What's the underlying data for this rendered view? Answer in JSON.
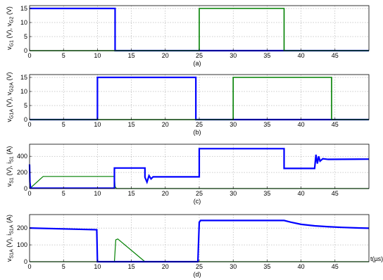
{
  "chart_data": [
    {
      "type": "line",
      "panel_label": "(a)",
      "ylabel": "v_G1 (V), v_G2 (V)",
      "ylabel_parts": [
        "v",
        "G1",
        " (V), v",
        "G2",
        " (V)"
      ],
      "xlim": [
        0,
        50
      ],
      "ylim": [
        0,
        16
      ],
      "xticks": [
        0,
        5,
        10,
        15,
        20,
        25,
        30,
        35,
        40,
        45
      ],
      "yticks": [
        0,
        5,
        10,
        15
      ],
      "grid": true,
      "series": [
        {
          "color": "#0000ff",
          "width": 2.2,
          "x": [
            0,
            12.6,
            12.6,
            50
          ],
          "y": [
            15,
            15,
            0,
            0
          ]
        },
        {
          "color": "#008000",
          "width": 1.6,
          "x": [
            0,
            25,
            25,
            37.5,
            37.5,
            50
          ],
          "y": [
            0,
            0,
            15,
            15,
            0,
            0
          ]
        }
      ]
    },
    {
      "type": "line",
      "panel_label": "(b)",
      "ylabel": "v_G1A (V), v_G2A (V)",
      "ylabel_parts": [
        "v",
        "G1A",
        " (V), v",
        "G2A",
        " (V)"
      ],
      "xlim": [
        0,
        50
      ],
      "ylim": [
        0,
        16
      ],
      "xticks": [
        0,
        5,
        10,
        15,
        20,
        25,
        30,
        35,
        40,
        45
      ],
      "yticks": [
        0,
        5,
        10,
        15
      ],
      "grid": true,
      "series": [
        {
          "color": "#0000ff",
          "width": 2.2,
          "x": [
            0,
            10,
            10,
            24.5,
            24.5,
            50
          ],
          "y": [
            0,
            0,
            15,
            15,
            0,
            0
          ]
        },
        {
          "color": "#008000",
          "width": 1.6,
          "x": [
            0,
            30,
            30,
            44.5,
            44.5,
            50
          ],
          "y": [
            0,
            0,
            15,
            15,
            0,
            0
          ]
        }
      ]
    },
    {
      "type": "line",
      "panel_label": "(c)",
      "ylabel": "v_S1 (V), i_S1 (A)",
      "ylabel_parts": [
        "v",
        "S1",
        " (V), i",
        "S1",
        " (A)"
      ],
      "xlim": [
        0,
        50
      ],
      "ylim": [
        0,
        550
      ],
      "xticks": [
        0,
        5,
        10,
        15,
        20,
        25,
        30,
        35,
        40,
        45
      ],
      "yticks": [
        0,
        200,
        400
      ],
      "grid": true,
      "series": [
        {
          "color": "#008000",
          "width": 1.2,
          "x": [
            0,
            0.3,
            2,
            12.5,
            12.6,
            12.8,
            50
          ],
          "y": [
            0,
            20,
            150,
            150,
            25,
            0,
            0
          ]
        },
        {
          "color": "#0000ff",
          "width": 2.2,
          "x": [
            0,
            0.05,
            0.15,
            0.3,
            12.5,
            12.5,
            17,
            17,
            17.3,
            17.6,
            17.9,
            18.2,
            25,
            25,
            37.5,
            37.5,
            42,
            42.2,
            42.4,
            42.6,
            42.8,
            43.2,
            44,
            50
          ],
          "y": [
            300,
            80,
            5,
            5,
            5,
            255,
            255,
            140,
            80,
            160,
            120,
            145,
            145,
            495,
            495,
            250,
            250,
            420,
            310,
            400,
            340,
            370,
            362,
            365
          ]
        }
      ]
    },
    {
      "type": "line",
      "panel_label": "(d)",
      "ylabel": "v_S1A (V), i_S1A (A)",
      "ylabel_parts": [
        "v",
        "S1A",
        " (V), i",
        "S1A",
        " (A)"
      ],
      "xlabel": "t(µs)",
      "xlim": [
        0,
        50
      ],
      "ylim": [
        0,
        280
      ],
      "xticks": [
        0,
        5,
        10,
        15,
        20,
        25,
        30,
        35,
        40,
        45
      ],
      "yticks": [
        0,
        100,
        200
      ],
      "grid": true,
      "series": [
        {
          "color": "#008000",
          "width": 1.2,
          "x": [
            0,
            12.5,
            12.7,
            13,
            17,
            17.1,
            50
          ],
          "y": [
            0,
            0,
            130,
            135,
            0,
            0,
            0
          ]
        },
        {
          "color": "#0000ff",
          "width": 2.2,
          "x": [
            0,
            9.9,
            10,
            24.8,
            25,
            25.2,
            37.5,
            38.5,
            40,
            42,
            44,
            46,
            48,
            50
          ],
          "y": [
            200,
            190,
            0,
            0,
            235,
            245,
            245,
            235,
            222,
            213,
            208,
            204,
            201,
            199
          ]
        }
      ]
    }
  ]
}
